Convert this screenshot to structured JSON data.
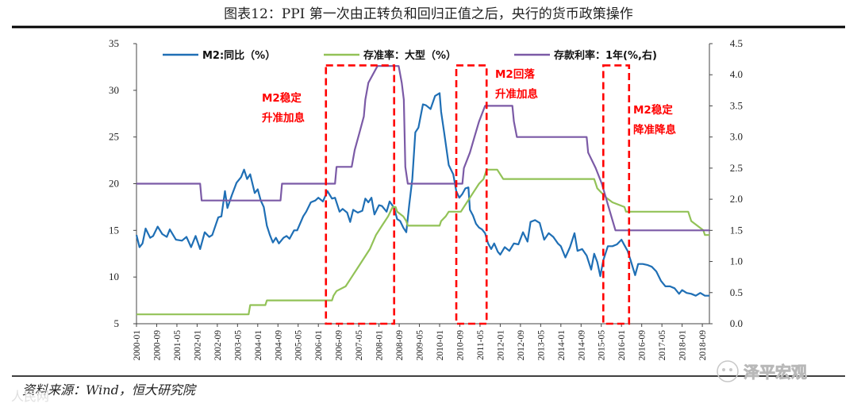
{
  "chart_data": {
    "type": "line",
    "title": "图表12：PPI 第一次由正转负和回归正值之后，央行的货币政策操作",
    "source": "资料来源：Wind，恒大研究院",
    "watermark": "泽平宏观",
    "watermark_left": "人民网",
    "left_axis": {
      "ylim": [
        5,
        35
      ],
      "ticks": [
        "5",
        "10",
        "15",
        "20",
        "25",
        "30",
        "35"
      ]
    },
    "right_axis": {
      "ylim": [
        0,
        4.5
      ],
      "ticks": [
        "0.0",
        "0.5",
        "1.0",
        "1.5",
        "2.0",
        "2.5",
        "3.0",
        "3.5",
        "4.0",
        "4.5"
      ]
    },
    "x_range": [
      2000.0,
      2018.9
    ],
    "x_ticks": [
      "2000-01",
      "2000-09",
      "2001-05",
      "2002-01",
      "2002-09",
      "2003-05",
      "2004-01",
      "2004-09",
      "2005-05",
      "2006-01",
      "2006-09",
      "2007-05",
      "2008-01",
      "2008-09",
      "2009-05",
      "2010-01",
      "2010-09",
      "2011-05",
      "2012-01",
      "2012-09",
      "2013-05",
      "2014-01",
      "2014-09",
      "2015-05",
      "2016-01",
      "2016-09",
      "2017-05",
      "2018-01",
      "2018-09"
    ],
    "series": [
      {
        "name": "M2:同比（%）",
        "axis": "left",
        "color": "#1f6fb5",
        "points": [
          [
            2000.0,
            14.5
          ],
          [
            2000.1,
            13.2
          ],
          [
            2000.2,
            13.6
          ],
          [
            2000.3,
            15.2
          ],
          [
            2000.45,
            14.2
          ],
          [
            2000.55,
            14.4
          ],
          [
            2000.7,
            15.4
          ],
          [
            2000.85,
            14.6
          ],
          [
            2001.0,
            14.3
          ],
          [
            2001.1,
            15.1
          ],
          [
            2001.3,
            14.0
          ],
          [
            2001.5,
            13.9
          ],
          [
            2001.65,
            14.3
          ],
          [
            2001.8,
            13.2
          ],
          [
            2001.95,
            14.4
          ],
          [
            2002.1,
            13.0
          ],
          [
            2002.25,
            14.8
          ],
          [
            2002.4,
            14.3
          ],
          [
            2002.5,
            14.5
          ],
          [
            2002.7,
            16.4
          ],
          [
            2002.8,
            16.5
          ],
          [
            2002.92,
            19.2
          ],
          [
            2003.0,
            17.4
          ],
          [
            2003.15,
            18.8
          ],
          [
            2003.3,
            20.1
          ],
          [
            2003.45,
            20.7
          ],
          [
            2003.55,
            21.5
          ],
          [
            2003.65,
            20.5
          ],
          [
            2003.75,
            21.0
          ],
          [
            2003.9,
            19.0
          ],
          [
            2004.0,
            19.4
          ],
          [
            2004.1,
            18.2
          ],
          [
            2004.2,
            17.5
          ],
          [
            2004.3,
            15.5
          ],
          [
            2004.4,
            14.5
          ],
          [
            2004.5,
            13.7
          ],
          [
            2004.6,
            14.2
          ],
          [
            2004.7,
            13.6
          ],
          [
            2004.85,
            14.2
          ],
          [
            2004.95,
            14.4
          ],
          [
            2005.05,
            14.1
          ],
          [
            2005.2,
            15.0
          ],
          [
            2005.3,
            15.0
          ],
          [
            2005.5,
            16.5
          ],
          [
            2005.6,
            17.0
          ],
          [
            2005.75,
            18.0
          ],
          [
            2005.9,
            18.2
          ],
          [
            2006.0,
            18.5
          ],
          [
            2006.15,
            18.1
          ],
          [
            2006.3,
            19.2
          ],
          [
            2006.45,
            18.4
          ],
          [
            2006.55,
            18.5
          ],
          [
            2006.7,
            17.0
          ],
          [
            2006.8,
            17.3
          ],
          [
            2006.95,
            16.9
          ],
          [
            2007.05,
            15.9
          ],
          [
            2007.15,
            17.2
          ],
          [
            2007.3,
            16.9
          ],
          [
            2007.45,
            17.1
          ],
          [
            2007.55,
            18.4
          ],
          [
            2007.65,
            18.0
          ],
          [
            2007.75,
            18.5
          ],
          [
            2007.85,
            16.7
          ],
          [
            2008.0,
            17.7
          ],
          [
            2008.1,
            17.6
          ],
          [
            2008.25,
            17.0
          ],
          [
            2008.35,
            18.1
          ],
          [
            2008.5,
            17.4
          ],
          [
            2008.6,
            16.2
          ],
          [
            2008.7,
            16.0
          ],
          [
            2008.8,
            15.3
          ],
          [
            2008.9,
            14.8
          ],
          [
            2009.0,
            17.8
          ],
          [
            2009.1,
            20.5
          ],
          [
            2009.2,
            25.5
          ],
          [
            2009.3,
            26.0
          ],
          [
            2009.45,
            28.5
          ],
          [
            2009.55,
            28.4
          ],
          [
            2009.7,
            28.0
          ],
          [
            2009.85,
            29.4
          ],
          [
            2010.0,
            29.7
          ],
          [
            2010.05,
            27.7
          ],
          [
            2010.15,
            25.5
          ],
          [
            2010.3,
            22.0
          ],
          [
            2010.45,
            21.0
          ],
          [
            2010.55,
            19.2
          ],
          [
            2010.65,
            18.5
          ],
          [
            2010.75,
            18.9
          ],
          [
            2010.85,
            19.5
          ],
          [
            2010.95,
            19.6
          ],
          [
            2011.0,
            17.2
          ],
          [
            2011.1,
            16.6
          ],
          [
            2011.2,
            15.7
          ],
          [
            2011.3,
            15.3
          ],
          [
            2011.4,
            15.1
          ],
          [
            2011.5,
            14.7
          ],
          [
            2011.6,
            13.6
          ],
          [
            2011.7,
            13.0
          ],
          [
            2011.8,
            13.6
          ],
          [
            2011.92,
            12.7
          ],
          [
            2012.0,
            12.4
          ],
          [
            2012.15,
            13.2
          ],
          [
            2012.3,
            12.8
          ],
          [
            2012.45,
            13.6
          ],
          [
            2012.6,
            13.5
          ],
          [
            2012.75,
            14.8
          ],
          [
            2012.9,
            13.8
          ],
          [
            2013.0,
            15.9
          ],
          [
            2013.15,
            16.1
          ],
          [
            2013.3,
            15.8
          ],
          [
            2013.45,
            14.0
          ],
          [
            2013.6,
            14.7
          ],
          [
            2013.75,
            14.3
          ],
          [
            2013.9,
            13.6
          ],
          [
            2014.0,
            13.3
          ],
          [
            2014.15,
            12.1
          ],
          [
            2014.3,
            13.2
          ],
          [
            2014.45,
            14.7
          ],
          [
            2014.55,
            12.8
          ],
          [
            2014.7,
            13.0
          ],
          [
            2014.85,
            12.3
          ],
          [
            2015.0,
            10.8
          ],
          [
            2015.1,
            12.5
          ],
          [
            2015.2,
            11.6
          ],
          [
            2015.3,
            10.1
          ],
          [
            2015.4,
            11.8
          ],
          [
            2015.55,
            13.3
          ],
          [
            2015.7,
            13.3
          ],
          [
            2015.85,
            13.5
          ],
          [
            2016.0,
            14.0
          ],
          [
            2016.1,
            13.4
          ],
          [
            2016.2,
            12.8
          ],
          [
            2016.3,
            11.8
          ],
          [
            2016.45,
            10.2
          ],
          [
            2016.55,
            11.4
          ],
          [
            2016.7,
            11.4
          ],
          [
            2016.85,
            11.3
          ],
          [
            2017.0,
            11.1
          ],
          [
            2017.15,
            10.6
          ],
          [
            2017.3,
            9.6
          ],
          [
            2017.45,
            9.0
          ],
          [
            2017.6,
            9.0
          ],
          [
            2017.75,
            8.8
          ],
          [
            2017.9,
            8.2
          ],
          [
            2018.0,
            8.6
          ],
          [
            2018.15,
            8.3
          ],
          [
            2018.3,
            8.2
          ],
          [
            2018.45,
            8.0
          ],
          [
            2018.6,
            8.3
          ],
          [
            2018.75,
            8.0
          ],
          [
            2018.9,
            8.0
          ]
        ]
      },
      {
        "name": "存准率：大型（%）",
        "axis": "left",
        "color": "#92c257",
        "points": [
          [
            2000.0,
            6.0
          ],
          [
            2003.7,
            6.0
          ],
          [
            2003.75,
            7.0
          ],
          [
            2004.25,
            7.0
          ],
          [
            2004.3,
            7.5
          ],
          [
            2006.45,
            7.5
          ],
          [
            2006.5,
            8.0
          ],
          [
            2006.6,
            8.5
          ],
          [
            2006.9,
            9.0
          ],
          [
            2007.1,
            10.0
          ],
          [
            2007.3,
            11.0
          ],
          [
            2007.5,
            12.0
          ],
          [
            2007.7,
            13.0
          ],
          [
            2007.9,
            14.5
          ],
          [
            2008.1,
            15.5
          ],
          [
            2008.3,
            16.5
          ],
          [
            2008.45,
            17.5
          ],
          [
            2008.55,
            17.5
          ],
          [
            2008.6,
            17.0
          ],
          [
            2008.8,
            16.5
          ],
          [
            2008.9,
            16.0
          ],
          [
            2008.95,
            15.5
          ],
          [
            2010.0,
            15.5
          ],
          [
            2010.05,
            16.0
          ],
          [
            2010.2,
            16.5
          ],
          [
            2010.3,
            17.0
          ],
          [
            2010.7,
            17.0
          ],
          [
            2010.8,
            17.5
          ],
          [
            2010.9,
            18.0
          ],
          [
            2011.1,
            19.0
          ],
          [
            2011.3,
            20.0
          ],
          [
            2011.45,
            20.5
          ],
          [
            2011.5,
            21.0
          ],
          [
            2011.55,
            21.5
          ],
          [
            2011.9,
            21.5
          ],
          [
            2012.0,
            21.0
          ],
          [
            2012.1,
            20.5
          ],
          [
            2015.1,
            20.5
          ],
          [
            2015.2,
            19.5
          ],
          [
            2015.35,
            19.0
          ],
          [
            2015.5,
            18.5
          ],
          [
            2015.7,
            18.0
          ],
          [
            2016.1,
            17.5
          ],
          [
            2016.15,
            17.0
          ],
          [
            2018.2,
            17.0
          ],
          [
            2018.3,
            16.0
          ],
          [
            2018.5,
            15.5
          ],
          [
            2018.7,
            15.0
          ],
          [
            2018.75,
            14.5
          ],
          [
            2018.9,
            14.5
          ]
        ]
      },
      {
        "name": "存款利率：1年(%,右)",
        "axis": "right",
        "color": "#7b5aa6",
        "points": [
          [
            2000.0,
            2.25
          ],
          [
            2002.1,
            2.25
          ],
          [
            2002.15,
            1.98
          ],
          [
            2004.75,
            1.98
          ],
          [
            2004.8,
            2.25
          ],
          [
            2006.55,
            2.25
          ],
          [
            2006.6,
            2.52
          ],
          [
            2007.1,
            2.52
          ],
          [
            2007.2,
            2.79
          ],
          [
            2007.35,
            3.06
          ],
          [
            2007.5,
            3.33
          ],
          [
            2007.55,
            3.6
          ],
          [
            2007.65,
            3.87
          ],
          [
            2007.95,
            4.14
          ],
          [
            2008.65,
            4.14
          ],
          [
            2008.75,
            3.87
          ],
          [
            2008.82,
            3.6
          ],
          [
            2008.87,
            2.52
          ],
          [
            2008.95,
            2.25
          ],
          [
            2010.75,
            2.25
          ],
          [
            2010.8,
            2.5
          ],
          [
            2011.0,
            2.75
          ],
          [
            2011.15,
            3.0
          ],
          [
            2011.3,
            3.25
          ],
          [
            2011.5,
            3.5
          ],
          [
            2012.4,
            3.5
          ],
          [
            2012.45,
            3.25
          ],
          [
            2012.55,
            3.0
          ],
          [
            2014.85,
            3.0
          ],
          [
            2014.9,
            2.75
          ],
          [
            2015.15,
            2.5
          ],
          [
            2015.35,
            2.25
          ],
          [
            2015.5,
            2.0
          ],
          [
            2015.65,
            1.75
          ],
          [
            2015.8,
            1.5
          ],
          [
            2018.9,
            1.5
          ]
        ]
      }
    ],
    "annotations": [
      {
        "id": "a1",
        "lines": [
          "M2稳定",
          "升准加息"
        ]
      },
      {
        "id": "a2",
        "lines": [
          "M2回落",
          "升准加息"
        ]
      },
      {
        "id": "a3",
        "lines": [
          "M2稳定",
          "降准降息"
        ]
      }
    ],
    "boxes": [
      {
        "id": "b1",
        "x0": 2006.25,
        "x1": 2008.5,
        "y0": 5.0,
        "y1": 4.15
      },
      {
        "id": "b2",
        "x0": 2010.55,
        "x1": 2011.55,
        "y0": 5.0,
        "y1": 4.15
      },
      {
        "id": "b3",
        "x0": 2015.4,
        "x1": 2016.25,
        "y0": 5.0,
        "y1": 4.15
      }
    ],
    "legend_position": "top"
  }
}
